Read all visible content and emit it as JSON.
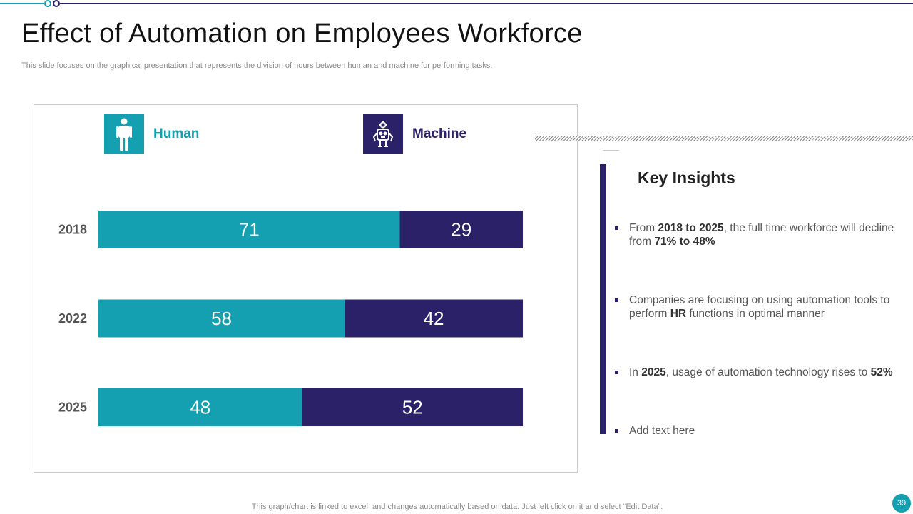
{
  "slide": {
    "title": "Effect of Automation on Employees Workforce",
    "subtitle": "This slide focuses on the graphical presentation that represents the division of hours between human and machine for performing tasks.",
    "footnote": "This graph/chart is linked to excel,  and changes automatically based on data. Just left click on it and select “Edit Data”.",
    "page_number": "39"
  },
  "legend": {
    "human": {
      "label": "Human",
      "icon": "person-icon"
    },
    "machine": {
      "label": "Machine",
      "icon": "robot-icon"
    }
  },
  "colors": {
    "human": "#14a0b0",
    "machine": "#2b2168"
  },
  "chart_data": {
    "type": "bar",
    "orientation": "horizontal",
    "stacked": true,
    "categories": [
      "2018",
      "2022",
      "2025"
    ],
    "series": [
      {
        "name": "Human",
        "values": [
          71,
          58,
          48
        ]
      },
      {
        "name": "Machine",
        "values": [
          29,
          42,
          52
        ]
      }
    ],
    "xlim": [
      0,
      100
    ],
    "grid": false,
    "data_labels": true,
    "legend_position": "top"
  },
  "insights": {
    "title": "Key Insights",
    "items": [
      {
        "segments": [
          {
            "text": "From ",
            "bold": false
          },
          {
            "text": "2018 to 2025",
            "bold": true
          },
          {
            "text": ", the full time workforce will decline from ",
            "bold": false
          },
          {
            "text": "71% to 48%",
            "bold": true
          }
        ]
      },
      {
        "segments": [
          {
            "text": "Companies are focusing on using automation tools to perform ",
            "bold": false
          },
          {
            "text": "HR",
            "bold": true
          },
          {
            "text": " functions  in optimal manner",
            "bold": false
          }
        ]
      },
      {
        "segments": [
          {
            "text": "In  ",
            "bold": false
          },
          {
            "text": "2025",
            "bold": true
          },
          {
            "text": ", usage of automation technology  rises to ",
            "bold": false
          },
          {
            "text": "52%",
            "bold": true
          }
        ]
      },
      {
        "segments": [
          {
            "text": "Add text here",
            "bold": false
          }
        ]
      }
    ]
  }
}
